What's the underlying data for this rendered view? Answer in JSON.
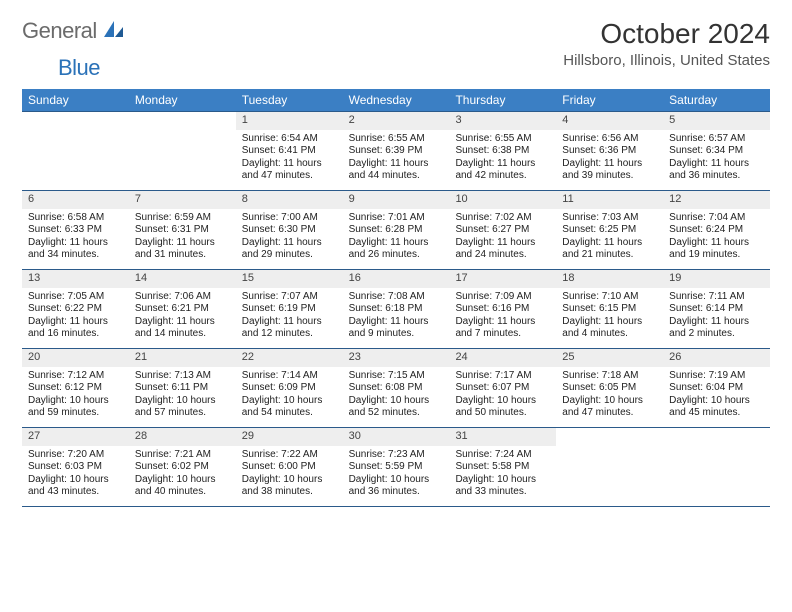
{
  "logo": {
    "text1": "General",
    "text2": "Blue"
  },
  "title": "October 2024",
  "location": "Hillsboro, Illinois, United States",
  "colors": {
    "header_bg": "#3b7fc4",
    "header_text": "#ffffff",
    "week_border": "#2b5a8a",
    "daynum_bg": "#eeeeee",
    "logo_gray": "#6b6b6b",
    "logo_blue": "#2b72b8"
  },
  "day_names": [
    "Sunday",
    "Monday",
    "Tuesday",
    "Wednesday",
    "Thursday",
    "Friday",
    "Saturday"
  ],
  "weeks": [
    [
      {
        "n": "",
        "sunrise": "",
        "sunset": "",
        "daylight": ""
      },
      {
        "n": "",
        "sunrise": "",
        "sunset": "",
        "daylight": ""
      },
      {
        "n": "1",
        "sunrise": "Sunrise: 6:54 AM",
        "sunset": "Sunset: 6:41 PM",
        "daylight": "Daylight: 11 hours and 47 minutes."
      },
      {
        "n": "2",
        "sunrise": "Sunrise: 6:55 AM",
        "sunset": "Sunset: 6:39 PM",
        "daylight": "Daylight: 11 hours and 44 minutes."
      },
      {
        "n": "3",
        "sunrise": "Sunrise: 6:55 AM",
        "sunset": "Sunset: 6:38 PM",
        "daylight": "Daylight: 11 hours and 42 minutes."
      },
      {
        "n": "4",
        "sunrise": "Sunrise: 6:56 AM",
        "sunset": "Sunset: 6:36 PM",
        "daylight": "Daylight: 11 hours and 39 minutes."
      },
      {
        "n": "5",
        "sunrise": "Sunrise: 6:57 AM",
        "sunset": "Sunset: 6:34 PM",
        "daylight": "Daylight: 11 hours and 36 minutes."
      }
    ],
    [
      {
        "n": "6",
        "sunrise": "Sunrise: 6:58 AM",
        "sunset": "Sunset: 6:33 PM",
        "daylight": "Daylight: 11 hours and 34 minutes."
      },
      {
        "n": "7",
        "sunrise": "Sunrise: 6:59 AM",
        "sunset": "Sunset: 6:31 PM",
        "daylight": "Daylight: 11 hours and 31 minutes."
      },
      {
        "n": "8",
        "sunrise": "Sunrise: 7:00 AM",
        "sunset": "Sunset: 6:30 PM",
        "daylight": "Daylight: 11 hours and 29 minutes."
      },
      {
        "n": "9",
        "sunrise": "Sunrise: 7:01 AM",
        "sunset": "Sunset: 6:28 PM",
        "daylight": "Daylight: 11 hours and 26 minutes."
      },
      {
        "n": "10",
        "sunrise": "Sunrise: 7:02 AM",
        "sunset": "Sunset: 6:27 PM",
        "daylight": "Daylight: 11 hours and 24 minutes."
      },
      {
        "n": "11",
        "sunrise": "Sunrise: 7:03 AM",
        "sunset": "Sunset: 6:25 PM",
        "daylight": "Daylight: 11 hours and 21 minutes."
      },
      {
        "n": "12",
        "sunrise": "Sunrise: 7:04 AM",
        "sunset": "Sunset: 6:24 PM",
        "daylight": "Daylight: 11 hours and 19 minutes."
      }
    ],
    [
      {
        "n": "13",
        "sunrise": "Sunrise: 7:05 AM",
        "sunset": "Sunset: 6:22 PM",
        "daylight": "Daylight: 11 hours and 16 minutes."
      },
      {
        "n": "14",
        "sunrise": "Sunrise: 7:06 AM",
        "sunset": "Sunset: 6:21 PM",
        "daylight": "Daylight: 11 hours and 14 minutes."
      },
      {
        "n": "15",
        "sunrise": "Sunrise: 7:07 AM",
        "sunset": "Sunset: 6:19 PM",
        "daylight": "Daylight: 11 hours and 12 minutes."
      },
      {
        "n": "16",
        "sunrise": "Sunrise: 7:08 AM",
        "sunset": "Sunset: 6:18 PM",
        "daylight": "Daylight: 11 hours and 9 minutes."
      },
      {
        "n": "17",
        "sunrise": "Sunrise: 7:09 AM",
        "sunset": "Sunset: 6:16 PM",
        "daylight": "Daylight: 11 hours and 7 minutes."
      },
      {
        "n": "18",
        "sunrise": "Sunrise: 7:10 AM",
        "sunset": "Sunset: 6:15 PM",
        "daylight": "Daylight: 11 hours and 4 minutes."
      },
      {
        "n": "19",
        "sunrise": "Sunrise: 7:11 AM",
        "sunset": "Sunset: 6:14 PM",
        "daylight": "Daylight: 11 hours and 2 minutes."
      }
    ],
    [
      {
        "n": "20",
        "sunrise": "Sunrise: 7:12 AM",
        "sunset": "Sunset: 6:12 PM",
        "daylight": "Daylight: 10 hours and 59 minutes."
      },
      {
        "n": "21",
        "sunrise": "Sunrise: 7:13 AM",
        "sunset": "Sunset: 6:11 PM",
        "daylight": "Daylight: 10 hours and 57 minutes."
      },
      {
        "n": "22",
        "sunrise": "Sunrise: 7:14 AM",
        "sunset": "Sunset: 6:09 PM",
        "daylight": "Daylight: 10 hours and 54 minutes."
      },
      {
        "n": "23",
        "sunrise": "Sunrise: 7:15 AM",
        "sunset": "Sunset: 6:08 PM",
        "daylight": "Daylight: 10 hours and 52 minutes."
      },
      {
        "n": "24",
        "sunrise": "Sunrise: 7:17 AM",
        "sunset": "Sunset: 6:07 PM",
        "daylight": "Daylight: 10 hours and 50 minutes."
      },
      {
        "n": "25",
        "sunrise": "Sunrise: 7:18 AM",
        "sunset": "Sunset: 6:05 PM",
        "daylight": "Daylight: 10 hours and 47 minutes."
      },
      {
        "n": "26",
        "sunrise": "Sunrise: 7:19 AM",
        "sunset": "Sunset: 6:04 PM",
        "daylight": "Daylight: 10 hours and 45 minutes."
      }
    ],
    [
      {
        "n": "27",
        "sunrise": "Sunrise: 7:20 AM",
        "sunset": "Sunset: 6:03 PM",
        "daylight": "Daylight: 10 hours and 43 minutes."
      },
      {
        "n": "28",
        "sunrise": "Sunrise: 7:21 AM",
        "sunset": "Sunset: 6:02 PM",
        "daylight": "Daylight: 10 hours and 40 minutes."
      },
      {
        "n": "29",
        "sunrise": "Sunrise: 7:22 AM",
        "sunset": "Sunset: 6:00 PM",
        "daylight": "Daylight: 10 hours and 38 minutes."
      },
      {
        "n": "30",
        "sunrise": "Sunrise: 7:23 AM",
        "sunset": "Sunset: 5:59 PM",
        "daylight": "Daylight: 10 hours and 36 minutes."
      },
      {
        "n": "31",
        "sunrise": "Sunrise: 7:24 AM",
        "sunset": "Sunset: 5:58 PM",
        "daylight": "Daylight: 10 hours and 33 minutes."
      },
      {
        "n": "",
        "sunrise": "",
        "sunset": "",
        "daylight": ""
      },
      {
        "n": "",
        "sunrise": "",
        "sunset": "",
        "daylight": ""
      }
    ]
  ]
}
